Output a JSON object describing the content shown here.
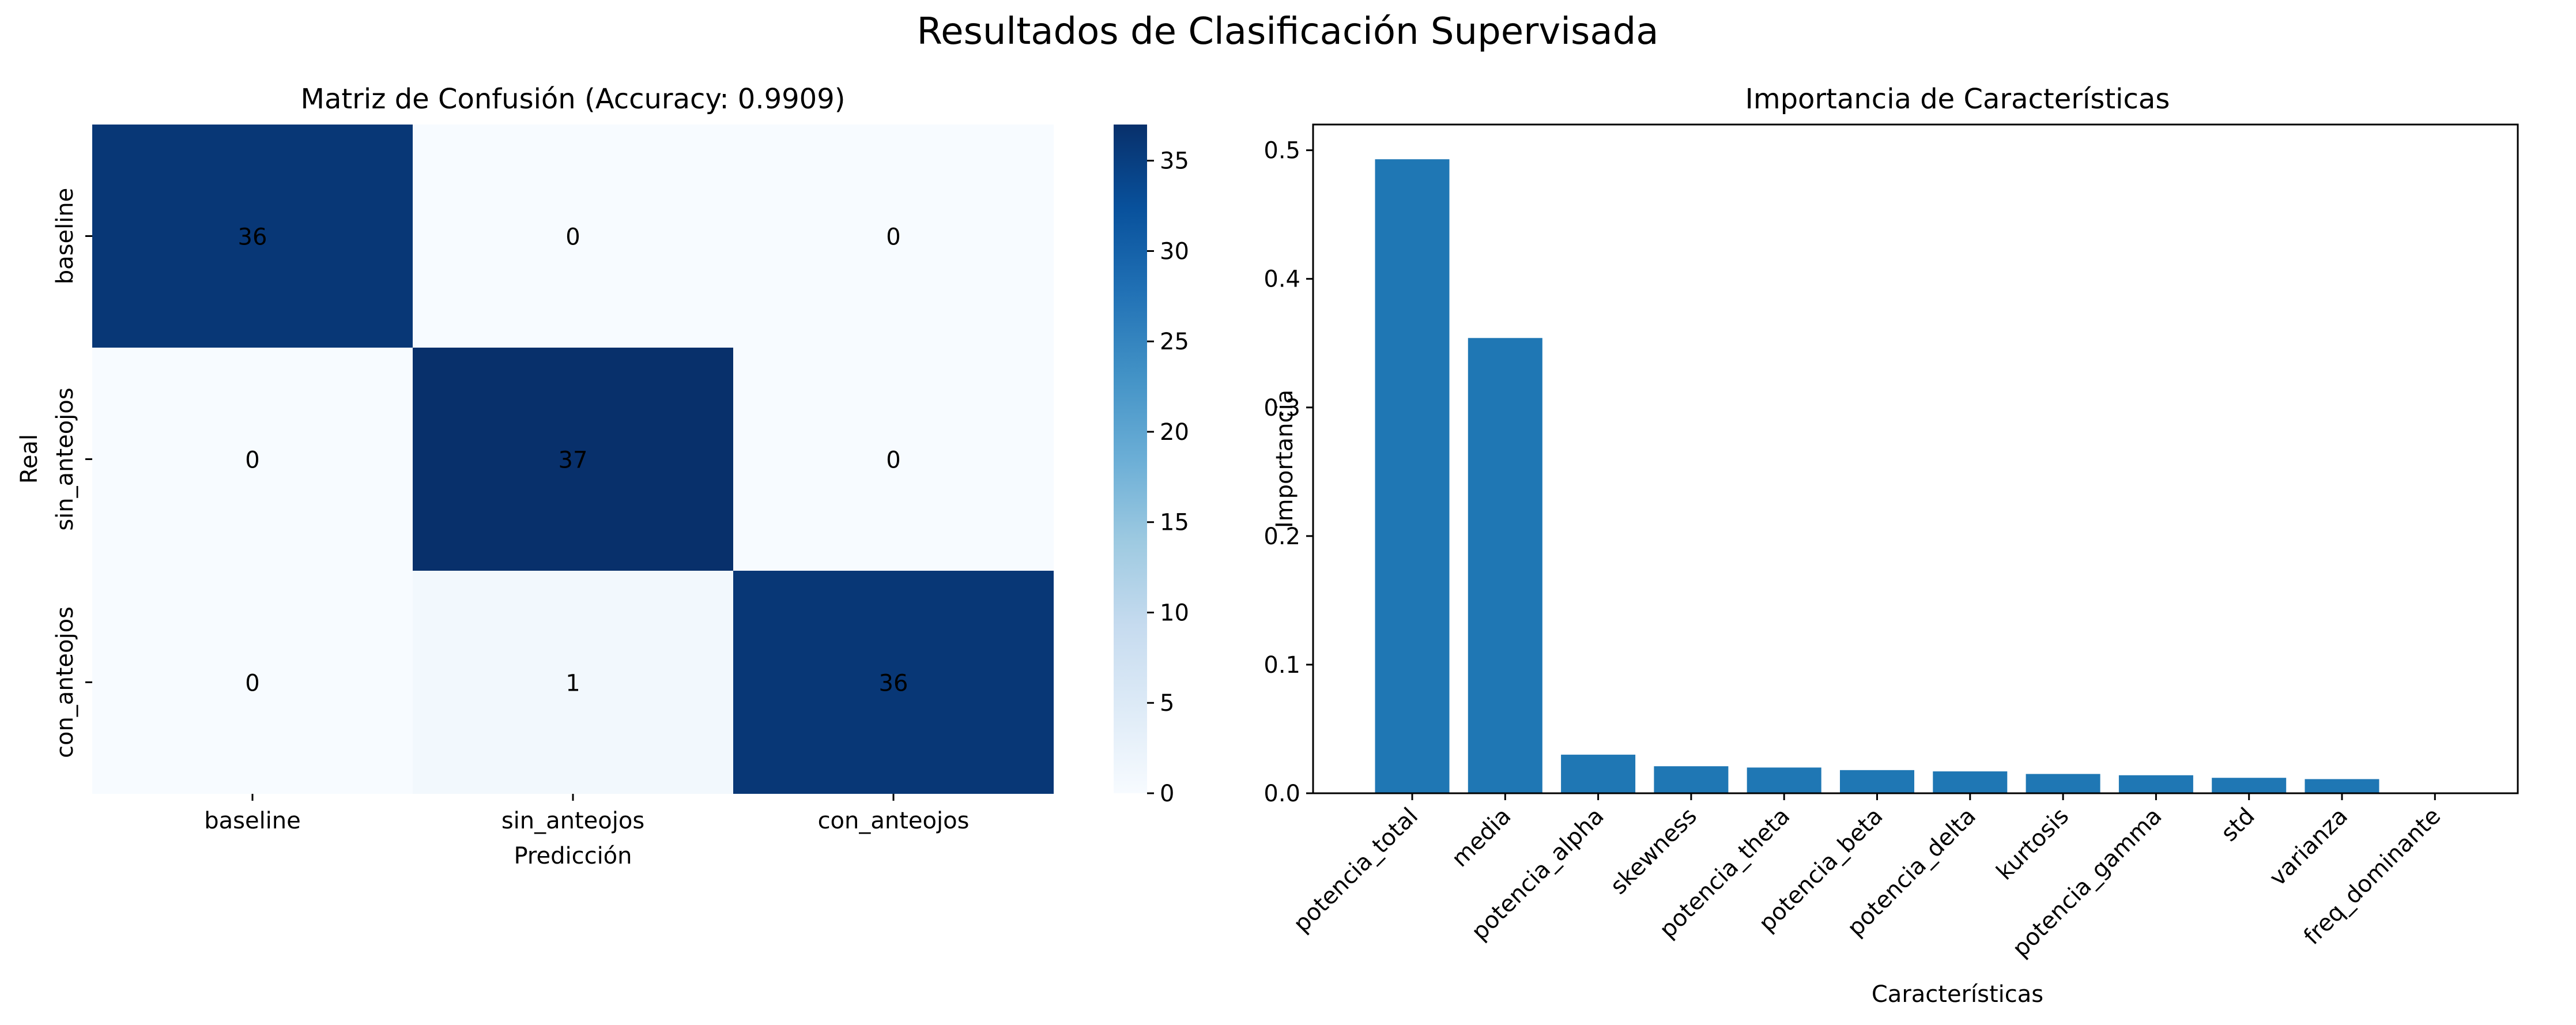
{
  "figure": {
    "title": "Resultados de Clasificación Supervisada"
  },
  "chart_data": [
    {
      "type": "heatmap",
      "title": "Matriz de Confusión (Accuracy: 0.9909)",
      "xlabel": "Predicción",
      "ylabel": "Real",
      "x_categories": [
        "baseline",
        "sin_anteojos",
        "con_anteojos"
      ],
      "y_categories": [
        "baseline",
        "sin_anteojos",
        "con_anteojos"
      ],
      "values": [
        [
          36,
          0,
          0
        ],
        [
          0,
          37,
          0
        ],
        [
          0,
          1,
          36
        ]
      ],
      "colormap": "Blues",
      "colorbar": {
        "range": [
          0,
          37
        ],
        "ticks": [
          0,
          5,
          10,
          15,
          20,
          25,
          30,
          35
        ]
      }
    },
    {
      "type": "bar",
      "title": "Importancia de Características",
      "xlabel": "Características",
      "ylabel": "Importancia",
      "categories": [
        "potencia_total",
        "media",
        "potencia_alpha",
        "skewness",
        "potencia_theta",
        "potencia_beta",
        "potencia_delta",
        "kurtosis",
        "potencia_gamma",
        "std",
        "varianza",
        "freq_dominante"
      ],
      "values": [
        0.493,
        0.354,
        0.03,
        0.021,
        0.02,
        0.018,
        0.017,
        0.015,
        0.014,
        0.012,
        0.011,
        0.0
      ],
      "ylim": [
        0,
        0.52
      ],
      "yticks": [
        "0.0",
        "0.1",
        "0.2",
        "0.3",
        "0.4",
        "0.5"
      ],
      "bar_color": "#1f77b4"
    }
  ]
}
